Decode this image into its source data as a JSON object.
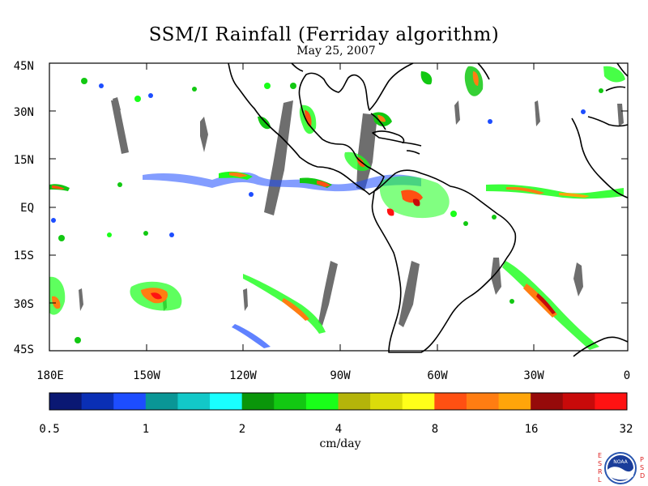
{
  "title": "SSM/I Rainfall (Ferriday algorithm)",
  "date": "May 25, 2007",
  "lat_labels": [
    "45N",
    "30N",
    "15N",
    "EQ",
    "15S",
    "30S",
    "45S"
  ],
  "lon_labels": [
    "180E",
    "150W",
    "120W",
    "90W",
    "60W",
    "30W",
    "0"
  ],
  "colorbar": {
    "tick_labels": [
      "0.5",
      "1",
      "2",
      "4",
      "8",
      "16",
      "32"
    ],
    "units": "cm/day",
    "colors": [
      "#0a1873",
      "#0a2fb5",
      "#1d4dff",
      "#0a9696",
      "#12c8c8",
      "#19ffff",
      "#0a960a",
      "#12c812",
      "#19ff19",
      "#b4b40a",
      "#dcdc0a",
      "#ffff19",
      "#ff5012",
      "#ff7d12",
      "#ffa50a",
      "#960a0a",
      "#c80a0a",
      "#ff1212"
    ]
  },
  "logo": {
    "left_letters": "ESRL",
    "right_letters": "PSD",
    "badge": "NOAA"
  },
  "map": {
    "lat_range": [
      -45,
      45
    ],
    "lon_range": [
      -180,
      0
    ],
    "no_data_color": "#6e6e6e"
  }
}
